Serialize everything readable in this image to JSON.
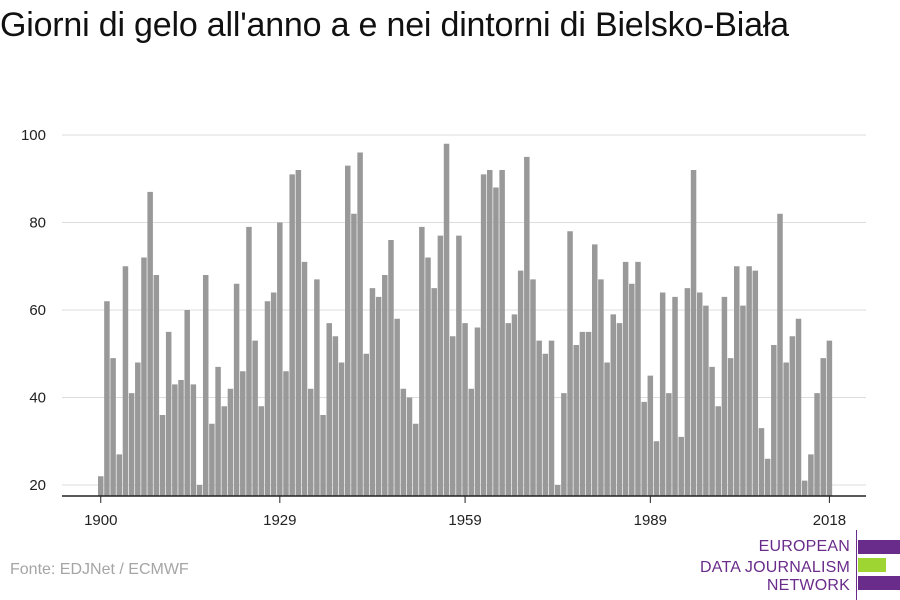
{
  "title": "Giorni di gelo all'anno a e nei dintorni di Bielsko-Biała",
  "source": "Fonte: EDJNet / ECMWF",
  "logo": {
    "lines": [
      "EUROPEAN",
      "DATA JOURNALISM",
      "NETWORK"
    ],
    "colors": {
      "purple": "#6a2c8a",
      "green": "#9ed532"
    }
  },
  "colors": {
    "bar": "#999999",
    "grid": "#dddddd",
    "axis": "#222222"
  },
  "chart_data": {
    "type": "bar",
    "title": "Giorni di gelo all'anno a e nei dintorni di Bielsko-Biała",
    "xlabel": "",
    "ylabel": "",
    "x_tick_labels": [
      "1900",
      "1929",
      "1959",
      "1989",
      "2018"
    ],
    "y_tick_labels": [
      "20",
      "40",
      "60",
      "80",
      "100"
    ],
    "ylim": [
      17,
      100
    ],
    "grid": "horizontal",
    "x_start_year": 1900,
    "categories": [
      1900,
      1901,
      1902,
      1903,
      1904,
      1905,
      1906,
      1907,
      1908,
      1909,
      1910,
      1911,
      1912,
      1913,
      1914,
      1915,
      1916,
      1917,
      1918,
      1919,
      1920,
      1921,
      1922,
      1923,
      1924,
      1925,
      1926,
      1927,
      1928,
      1929,
      1930,
      1931,
      1932,
      1933,
      1934,
      1935,
      1936,
      1937,
      1938,
      1939,
      1940,
      1941,
      1942,
      1943,
      1944,
      1945,
      1946,
      1947,
      1948,
      1949,
      1950,
      1951,
      1952,
      1953,
      1954,
      1955,
      1956,
      1957,
      1958,
      1959,
      1960,
      1961,
      1962,
      1963,
      1964,
      1965,
      1966,
      1967,
      1968,
      1969,
      1970,
      1971,
      1972,
      1973,
      1974,
      1975,
      1976,
      1977,
      1978,
      1979,
      1980,
      1981,
      1982,
      1983,
      1984,
      1985,
      1986,
      1987,
      1988,
      1989,
      1990,
      1991,
      1992,
      1993,
      1994,
      1995,
      1996,
      1997,
      1998,
      1999,
      2000,
      2001,
      2002,
      2003,
      2004,
      2005,
      2006,
      2007,
      2008,
      2009,
      2010,
      2011,
      2012,
      2013,
      2014,
      2015,
      2016,
      2017,
      2018
    ],
    "values": [
      22,
      62,
      49,
      27,
      70,
      41,
      48,
      72,
      87,
      68,
      36,
      55,
      43,
      44,
      60,
      43,
      20,
      68,
      34,
      47,
      38,
      42,
      66,
      46,
      79,
      53,
      38,
      62,
      64,
      80,
      46,
      91,
      92,
      71,
      42,
      67,
      36,
      57,
      54,
      48,
      93,
      82,
      96,
      50,
      65,
      63,
      68,
      76,
      58,
      42,
      40,
      34,
      79,
      72,
      65,
      77,
      98,
      54,
      77,
      57,
      42,
      56,
      91,
      92,
      88,
      92,
      57,
      59,
      69,
      95,
      67,
      53,
      50,
      53,
      20,
      41,
      78,
      52,
      55,
      55,
      75,
      67,
      48,
      59,
      57,
      71,
      66,
      71,
      39,
      45,
      30,
      64,
      41,
      63,
      31,
      65,
      92,
      64,
      61,
      47,
      38,
      63,
      49,
      70,
      61,
      70,
      69,
      33,
      26,
      52,
      82,
      48,
      54,
      58,
      21,
      27,
      41,
      49,
      53
    ]
  }
}
